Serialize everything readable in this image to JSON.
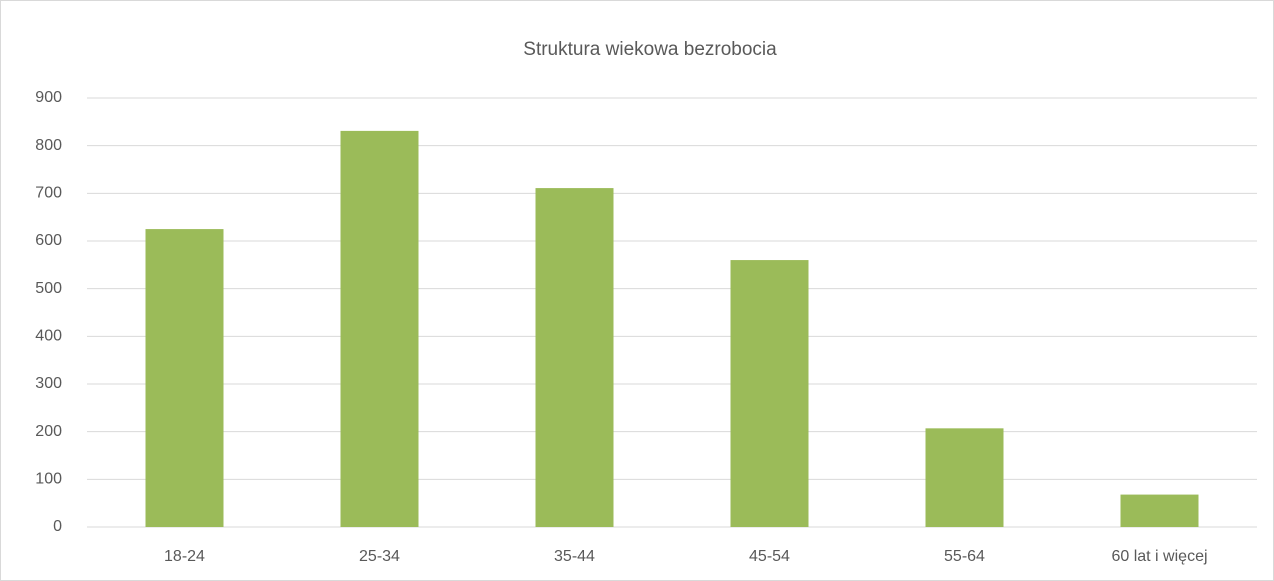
{
  "chart_data": {
    "type": "bar",
    "title": "Struktura wiekowa bezrobocia",
    "categories": [
      "18-24",
      "25-34",
      "35-44",
      "45-54",
      "55-64",
      "60 lat i więcej"
    ],
    "values": [
      625,
      831,
      711,
      560,
      207,
      68
    ],
    "color": "#9bbb59",
    "ylim": [
      0,
      900
    ],
    "yticks": [
      0,
      100,
      200,
      300,
      400,
      500,
      600,
      700,
      800,
      900
    ],
    "grid": true
  }
}
